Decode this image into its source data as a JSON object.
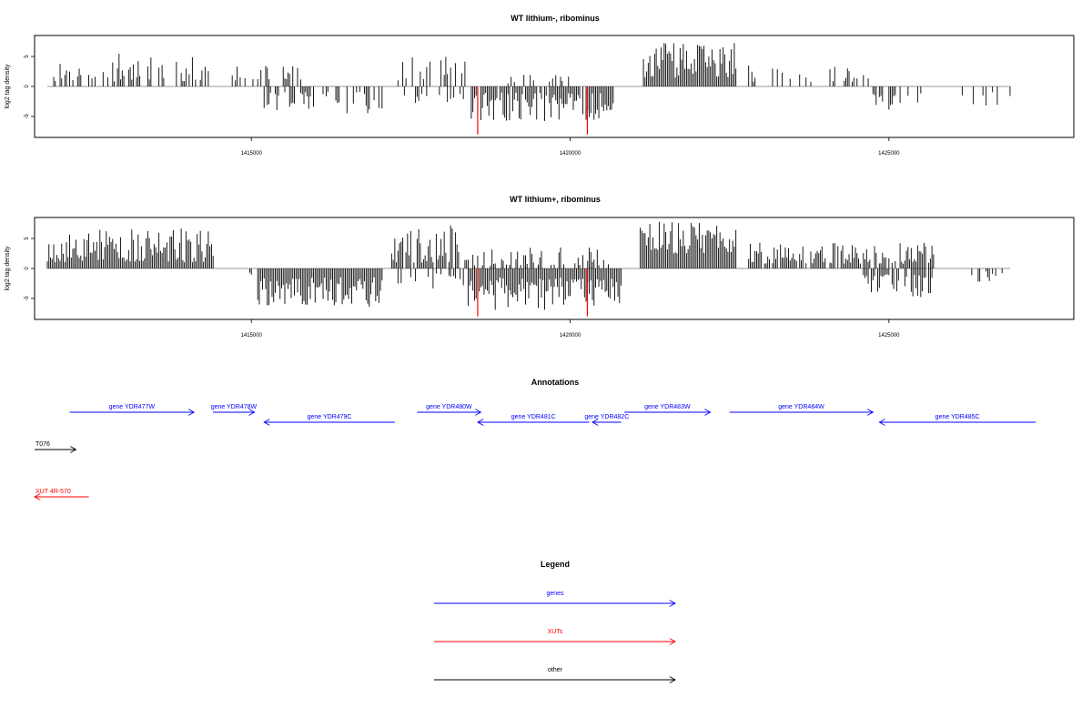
{
  "colors": {
    "signal": "#000000",
    "highlight": "#ff0000",
    "genes": "#0000ff",
    "xuts": "#ff0000",
    "other": "#000000",
    "baseline": "#777777",
    "frame": "#000000"
  },
  "chart_data": [
    {
      "type": "bar",
      "title": "WT lithium-, ribominus",
      "ylabel": "log2 tag density",
      "xlabel": "",
      "xlim": [
        1411600,
        1427900
      ],
      "ylim": [
        -8.5,
        8.5
      ],
      "xticks": [
        1415000,
        1420000,
        1425000
      ],
      "xtick_labels": [
        "1415000",
        "1420000",
        "1425000"
      ],
      "yticks": [
        -5,
        0,
        5
      ],
      "ytick_labels": [
        "-5",
        "0",
        "5"
      ],
      "grid": false,
      "segments": [
        {
          "start": 1411900,
          "end": 1414400,
          "dens": 0.45,
          "min": 0.8,
          "max": 5.5,
          "sign": 1,
          "seed": 11
        },
        {
          "start": 1414700,
          "end": 1415900,
          "dens": 0.35,
          "min": 1.0,
          "max": 3.5,
          "sign": 1,
          "seed": 13
        },
        {
          "start": 1415200,
          "end": 1417050,
          "dens": 0.45,
          "min": 0.8,
          "max": 4.5,
          "sign": -1,
          "seed": 17
        },
        {
          "start": 1417300,
          "end": 1418350,
          "dens": 0.25,
          "min": 1.0,
          "max": 5.0,
          "sign": 1,
          "seed": 19
        },
        {
          "start": 1417400,
          "end": 1418350,
          "dens": 0.25,
          "min": 1.0,
          "max": 3.0,
          "sign": -1,
          "seed": 23
        },
        {
          "start": 1418450,
          "end": 1420700,
          "dens": 0.9,
          "min": 1.0,
          "max": 6.0,
          "sign": -1,
          "seed": 29
        },
        {
          "start": 1419000,
          "end": 1420000,
          "dens": 0.2,
          "min": 0.5,
          "max": 2.0,
          "sign": 1,
          "seed": 31
        },
        {
          "start": 1421150,
          "end": 1422600,
          "dens": 1.0,
          "min": 1.5,
          "max": 7.3,
          "sign": 1,
          "seed": 37
        },
        {
          "start": 1422800,
          "end": 1424800,
          "dens": 0.35,
          "min": 0.8,
          "max": 3.5,
          "sign": 1,
          "seed": 41
        },
        {
          "start": 1424750,
          "end": 1425500,
          "dens": 0.4,
          "min": 1.0,
          "max": 4.0,
          "sign": -1,
          "seed": 43
        },
        {
          "start": 1426100,
          "end": 1426900,
          "dens": 0.25,
          "min": 0.8,
          "max": 3.2,
          "sign": -1,
          "seed": 47
        }
      ],
      "highlights": [
        {
          "x": 1418550,
          "y": -8.0
        },
        {
          "x": 1420270,
          "y": -8.0
        }
      ]
    },
    {
      "type": "bar",
      "title": "WT lithium+, ribominus",
      "ylabel": "log2 tag density",
      "xlabel": "",
      "xlim": [
        1411600,
        1427900
      ],
      "ylim": [
        -8.5,
        8.5
      ],
      "xticks": [
        1415000,
        1420000,
        1425000
      ],
      "xtick_labels": [
        "1415000",
        "1420000",
        "1425000"
      ],
      "yticks": [
        -5,
        0,
        5
      ],
      "ytick_labels": [
        "-5",
        "0",
        "5"
      ],
      "grid": false,
      "segments": [
        {
          "start": 1411800,
          "end": 1414400,
          "dens": 1.0,
          "min": 1.0,
          "max": 6.8,
          "sign": 1,
          "seed": 53
        },
        {
          "start": 1414700,
          "end": 1415000,
          "dens": 0.2,
          "min": 0.5,
          "max": 2.0,
          "sign": -1,
          "seed": 59
        },
        {
          "start": 1415100,
          "end": 1417050,
          "dens": 1.0,
          "min": 1.5,
          "max": 6.5,
          "sign": -1,
          "seed": 61
        },
        {
          "start": 1417200,
          "end": 1418400,
          "dens": 0.7,
          "min": 1.0,
          "max": 7.3,
          "sign": 1,
          "seed": 67
        },
        {
          "start": 1417300,
          "end": 1418400,
          "dens": 0.35,
          "min": 0.8,
          "max": 3.5,
          "sign": -1,
          "seed": 71
        },
        {
          "start": 1418400,
          "end": 1420800,
          "dens": 1.0,
          "min": 1.5,
          "max": 7.0,
          "sign": -1,
          "seed": 73
        },
        {
          "start": 1418400,
          "end": 1420600,
          "dens": 0.4,
          "min": 0.5,
          "max": 3.5,
          "sign": 1,
          "seed": 79
        },
        {
          "start": 1421100,
          "end": 1422600,
          "dens": 1.0,
          "min": 2.5,
          "max": 8.3,
          "sign": 1,
          "seed": 83
        },
        {
          "start": 1422800,
          "end": 1425700,
          "dens": 0.8,
          "min": 0.8,
          "max": 4.3,
          "sign": 1,
          "seed": 89
        },
        {
          "start": 1424600,
          "end": 1425700,
          "dens": 0.6,
          "min": 1.0,
          "max": 5.0,
          "sign": -1,
          "seed": 97
        },
        {
          "start": 1426300,
          "end": 1426900,
          "dens": 0.3,
          "min": 0.5,
          "max": 2.5,
          "sign": -1,
          "seed": 101
        }
      ],
      "highlights": [
        {
          "x": 1418550,
          "y": -8.0
        },
        {
          "x": 1420270,
          "y": -8.0
        }
      ]
    }
  ],
  "annotations": {
    "title": "Annotations",
    "xlim": [
      1411600,
      1427900
    ],
    "features": [
      {
        "label": "gene YDR477W",
        "start": 1412150,
        "end": 1414100,
        "strand": "+",
        "track": "genes",
        "row": 0
      },
      {
        "label": "gene YDR478W",
        "start": 1414400,
        "end": 1415050,
        "strand": "+",
        "track": "genes",
        "row": 0
      },
      {
        "label": "gene YDR479C",
        "start": 1415200,
        "end": 1417250,
        "strand": "-",
        "track": "genes",
        "row": 1
      },
      {
        "label": "gene YDR480W",
        "start": 1417600,
        "end": 1418600,
        "strand": "+",
        "track": "genes",
        "row": 0
      },
      {
        "label": "gene YDR481C",
        "start": 1418550,
        "end": 1420300,
        "strand": "-",
        "track": "genes",
        "row": 1
      },
      {
        "label": "gene YDR482C",
        "start": 1420350,
        "end": 1420800,
        "strand": "-",
        "track": "genes",
        "row": 1
      },
      {
        "label": "gene YDR483W",
        "start": 1420850,
        "end": 1422200,
        "strand": "+",
        "track": "genes",
        "row": 0
      },
      {
        "label": "gene YDR484W",
        "start": 1422500,
        "end": 1424750,
        "strand": "+",
        "track": "genes",
        "row": 0
      },
      {
        "label": "gene YDR485C",
        "start": 1424850,
        "end": 1427300,
        "strand": "-",
        "track": "genes",
        "row": 1
      },
      {
        "label": "T076",
        "start": 1411600,
        "end": 1412250,
        "strand": "+",
        "track": "other",
        "row": 3
      },
      {
        "label": "XUT 4R-570",
        "start": 1411600,
        "end": 1412450,
        "strand": "-",
        "track": "xuts",
        "row": 5
      }
    ]
  },
  "legend": {
    "title": "Legend",
    "items": [
      {
        "label": "genes",
        "track": "genes"
      },
      {
        "label": "XUTs",
        "track": "xuts"
      },
      {
        "label": "other",
        "track": "other"
      }
    ]
  }
}
